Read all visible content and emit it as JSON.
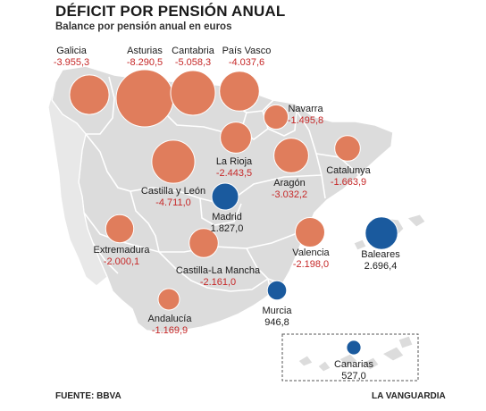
{
  "header": {
    "title": "DÉFICIT POR PENSIÓN ANUAL",
    "subtitle": "Balance por pensión anual en euros"
  },
  "footer": {
    "source": "FUENTE: BBVA",
    "credit": "LA VANGUARDIA"
  },
  "colors": {
    "deficit": "#e07d5c",
    "surplus": "#1a5a9e",
    "deficit_text": "#c62828",
    "map_fill": "#dcdcdc",
    "region_border": "#ffffff",
    "bubble_outline": "#ffffff"
  },
  "regions": [
    {
      "name": "Galicia",
      "value": -3955.3,
      "label": "-3.955,3"
    },
    {
      "name": "Asturias",
      "value": -8290.5,
      "label": "-8.290,5"
    },
    {
      "name": "Cantabria",
      "value": -5058.3,
      "label": "-5.058,3"
    },
    {
      "name": "País Vasco",
      "value": -4037.6,
      "label": "-4.037,6"
    },
    {
      "name": "Navarra",
      "value": -1495.8,
      "label": "-1.495,8"
    },
    {
      "name": "La Rioja",
      "value": -2443.5,
      "label": "-2.443,5"
    },
    {
      "name": "Aragón",
      "value": -3032.2,
      "label": "-3.032,2"
    },
    {
      "name": "Catalunya",
      "value": -1663.9,
      "label": "-1.663,9"
    },
    {
      "name": "Castilla y León",
      "value": -4711.0,
      "label": "-4.711,0"
    },
    {
      "name": "Madrid",
      "value": 1827.0,
      "label": "1.827,0"
    },
    {
      "name": "Extremadura",
      "value": -2000.1,
      "label": "-2.000,1"
    },
    {
      "name": "Castilla-La Mancha",
      "value": -2161.0,
      "label": "-2.161,0"
    },
    {
      "name": "Valencia",
      "value": -2198.0,
      "label": "-2.198,0"
    },
    {
      "name": "Baleares",
      "value": 2696.4,
      "label": "2.696,4"
    },
    {
      "name": "Murcia",
      "value": 946.8,
      "label": "946,8"
    },
    {
      "name": "Andalucía",
      "value": -1169.9,
      "label": "-1.169,9"
    },
    {
      "name": "Canarias",
      "value": 527.0,
      "label": "527,0"
    }
  ]
}
